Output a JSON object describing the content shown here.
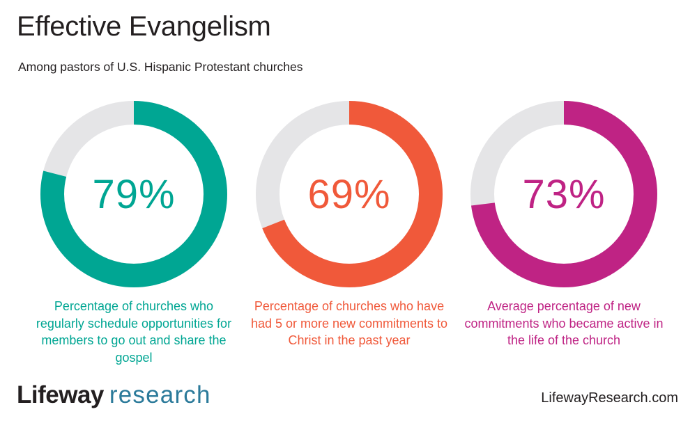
{
  "header": {
    "title": "Effective Evangelism",
    "subtitle": "Among pastors of U.S. Hispanic Protestant churches"
  },
  "colors": {
    "track": "#e5e5e7",
    "teal": "#00a693",
    "orange": "#f0593a",
    "magenta": "#bf2384"
  },
  "chart_data": {
    "type": "pie",
    "series": [
      {
        "value": 79,
        "label": "79%",
        "color": "#00a693",
        "description": "Percentage of churches who regularly schedule opportunities for members to go out and share the gospel"
      },
      {
        "value": 69,
        "label": "69%",
        "color": "#f0593a",
        "description": "Percentage of churches who have had 5 or more new commitments to Christ in the past year"
      },
      {
        "value": 73,
        "label": "73%",
        "color": "#bf2384",
        "description": "Average percentage of new commitments who became active in the life of the church"
      }
    ]
  },
  "footer": {
    "logo_word1": "Lifeway",
    "logo_word2": "research",
    "website": "LifewayResearch.com"
  }
}
